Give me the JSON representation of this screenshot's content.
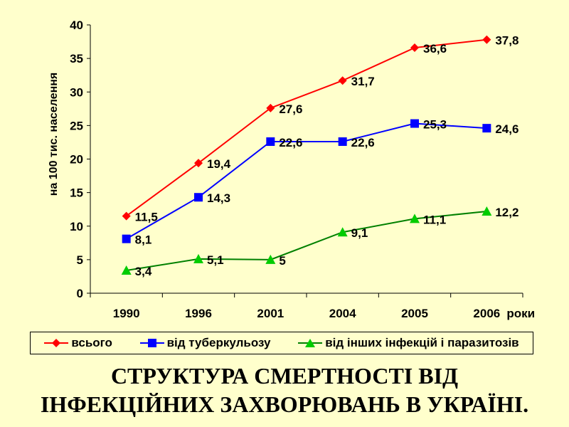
{
  "chart_data": {
    "type": "line",
    "categories": [
      "1990",
      "1996",
      "2001",
      "2004",
      "2005",
      "2006"
    ],
    "x_suffix": "роки",
    "ylabel": "на 100 тис. населення",
    "ylim": [
      0,
      40
    ],
    "yticks": [
      0,
      5,
      10,
      15,
      20,
      25,
      30,
      35,
      40
    ],
    "series": [
      {
        "name": "всього",
        "color": "#ff0000",
        "marker": "diamond",
        "values": [
          11.5,
          19.4,
          27.6,
          31.7,
          36.6,
          37.8
        ],
        "labels": [
          "11,5",
          "19,4",
          "27,6",
          "31,7",
          "36,6",
          "37,8"
        ]
      },
      {
        "name": "від туберкульозу",
        "color": "#0000ff",
        "marker": "square",
        "values": [
          8.1,
          14.3,
          22.6,
          22.6,
          25.3,
          24.6
        ],
        "labels": [
          "8,1",
          "14,3",
          "22,6",
          "22,6",
          "25,3",
          "24,6"
        ]
      },
      {
        "name": "від інших інфекцій і паразитозів",
        "color": "#008000",
        "marker": "triangle",
        "values": [
          3.4,
          5.1,
          5.0,
          9.1,
          11.1,
          12.2
        ],
        "labels": [
          "3,4",
          "5,1",
          "5",
          "9,1",
          "11,1",
          "12,2"
        ]
      }
    ],
    "grid": false,
    "legend_position": "bottom"
  },
  "title": {
    "line1": "СТРУКТУРА СМЕРТНОСТІ ВІД",
    "line2": "ІНФЕКЦІЙНИХ ЗАХВОРЮВАНЬ В УКРАЇНІ."
  }
}
